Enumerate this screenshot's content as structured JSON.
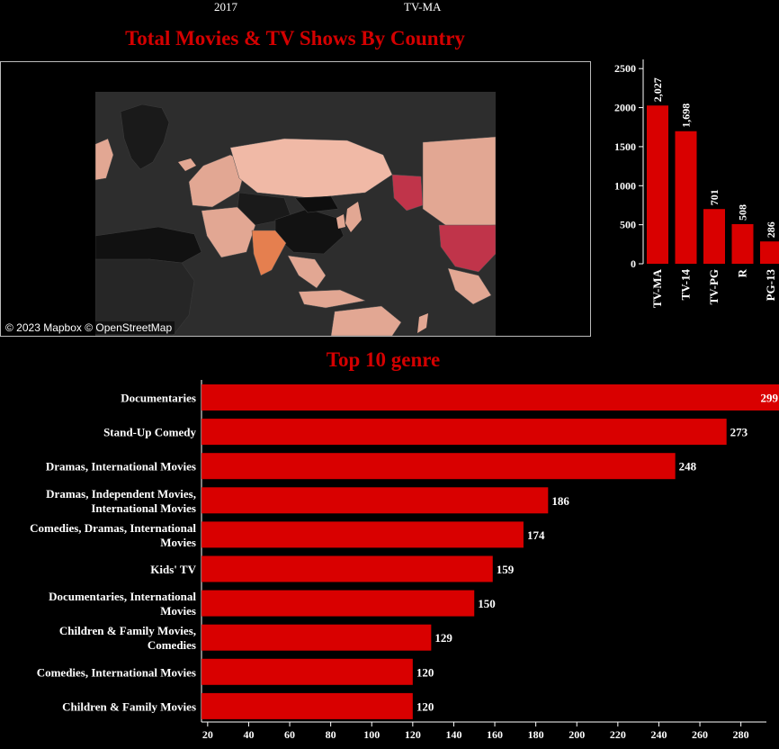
{
  "header": {
    "year": "2017",
    "rating": "TV-MA"
  },
  "map": {
    "title": "Total Movies & TV Shows By Country",
    "attribution": "© 2023 Mapbox © OpenStreetMap",
    "colors": {
      "background": "#2d2d2d",
      "low": "#e2a793",
      "high": "#c0344a",
      "none": "#1a1a1a"
    }
  },
  "colors": {
    "bar": "#d90000",
    "title": "#d40000",
    "text": "#ffffff"
  },
  "chart_data": [
    {
      "type": "bar",
      "id": "ratings",
      "categories": [
        "TV-MA",
        "TV-14",
        "TV-PG",
        "R",
        "PG-13"
      ],
      "values": [
        2027,
        1698,
        701,
        508,
        286
      ],
      "value_labels": [
        "2,027",
        "1,698",
        "701",
        "508",
        "286"
      ],
      "yticks": [
        0,
        500,
        1000,
        1500,
        2000,
        2500
      ],
      "ylim": [
        0,
        2560
      ],
      "title": "",
      "xlabel": "",
      "ylabel": "",
      "grid": false
    },
    {
      "type": "bar",
      "id": "genres",
      "orientation": "horizontal",
      "title": "Top 10 genre",
      "categories": [
        [
          "Documentaries"
        ],
        [
          "Stand-Up Comedy"
        ],
        [
          "Dramas, International Movies"
        ],
        [
          "Dramas, Independent Movies,",
          "International Movies"
        ],
        [
          "Comedies, Dramas, International",
          "Movies"
        ],
        [
          "Kids' TV"
        ],
        [
          "Documentaries, International",
          "Movies"
        ],
        [
          "Children & Family Movies,",
          "Comedies"
        ],
        [
          "Comedies, International Movies"
        ],
        [
          "Children & Family Movies"
        ]
      ],
      "values": [
        299,
        273,
        248,
        186,
        174,
        159,
        150,
        129,
        120,
        120
      ],
      "xticks": [
        20,
        40,
        60,
        80,
        100,
        120,
        140,
        160,
        180,
        200,
        220,
        240,
        260,
        280
      ],
      "xlim": [
        17,
        300
      ],
      "xlabel": "",
      "ylabel": "",
      "grid": false
    }
  ]
}
